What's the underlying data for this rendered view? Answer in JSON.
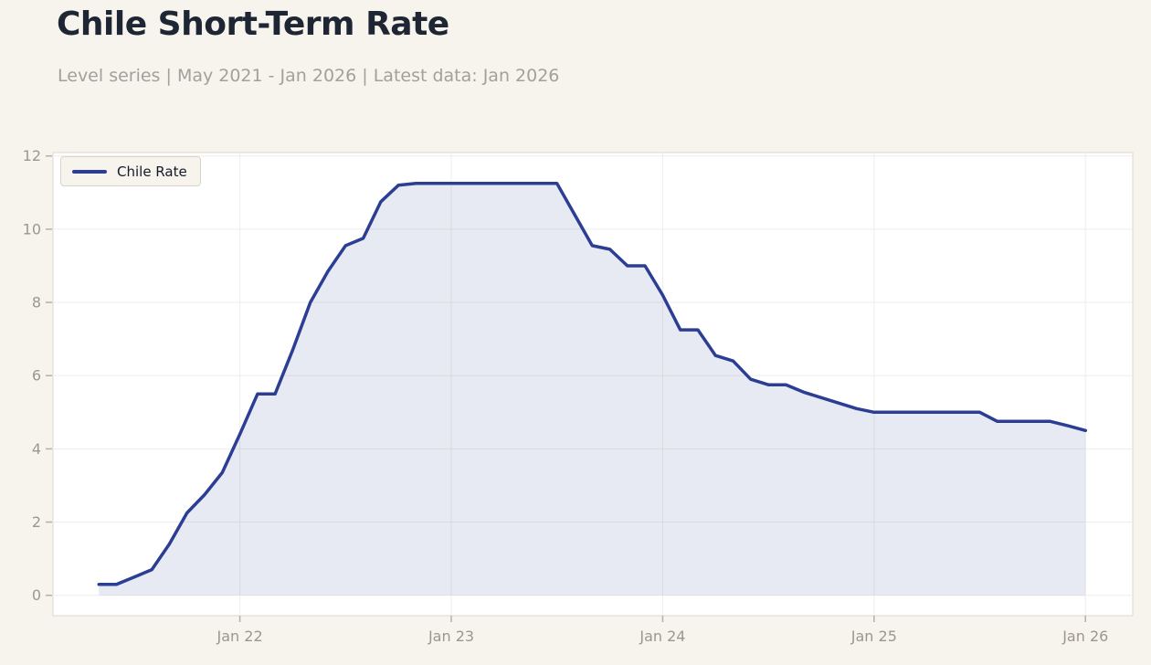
{
  "header": {
    "title": "Chile Short-Term Rate",
    "subtitle": "Level series | May 2021 - Jan 2026 | Latest data: Jan 2026"
  },
  "colors": {
    "page_background": "#f7f4ee",
    "plot_background": "#ffffff",
    "plot_border": "#dbd8ce",
    "gridline": "#ededec",
    "tick": "#b3afa6",
    "axis_label": "#9b978f",
    "line": "#2b3e94",
    "area_fill": "rgba(43,62,148,0.11)",
    "title_text": "#1e2634",
    "subtitle_text": "#a3a09a",
    "legend_text": "#141a2a"
  },
  "chart_data": {
    "type": "area",
    "title": "Chile Short-Term Rate",
    "subtitle": "Level series | May 2021 - Jan 2026 | Latest data: Jan 2026",
    "xlabel": "",
    "ylabel": "",
    "grid": true,
    "legend_position": "upper-left",
    "ylim": [
      -0.55,
      12.1
    ],
    "yticks": [
      0,
      2,
      4,
      6,
      8,
      10,
      12
    ],
    "xticks": [
      {
        "label": "Jan 22",
        "month_index": 8
      },
      {
        "label": "Jan 23",
        "month_index": 20
      },
      {
        "label": "Jan 24",
        "month_index": 32
      },
      {
        "label": "Jan 25",
        "month_index": 44
      },
      {
        "label": "Jan 26",
        "month_index": 56
      }
    ],
    "series": [
      {
        "name": "Chile Rate",
        "points": [
          [
            "2021-05",
            0.3
          ],
          [
            "2021-06",
            0.3
          ],
          [
            "2021-07",
            0.5
          ],
          [
            "2021-08",
            0.7
          ],
          [
            "2021-09",
            1.4
          ],
          [
            "2021-10",
            2.25
          ],
          [
            "2021-11",
            2.75
          ],
          [
            "2021-12",
            3.35
          ],
          [
            "2022-01",
            4.4
          ],
          [
            "2022-02",
            5.5
          ],
          [
            "2022-03",
            5.5
          ],
          [
            "2022-04",
            6.7
          ],
          [
            "2022-05",
            8.0
          ],
          [
            "2022-06",
            8.85
          ],
          [
            "2022-07",
            9.55
          ],
          [
            "2022-08",
            9.75
          ],
          [
            "2022-09",
            10.75
          ],
          [
            "2022-10",
            11.2
          ],
          [
            "2022-11",
            11.25
          ],
          [
            "2022-12",
            11.25
          ],
          [
            "2023-01",
            11.25
          ],
          [
            "2023-02",
            11.25
          ],
          [
            "2023-03",
            11.25
          ],
          [
            "2023-04",
            11.25
          ],
          [
            "2023-05",
            11.25
          ],
          [
            "2023-06",
            11.25
          ],
          [
            "2023-07",
            11.25
          ],
          [
            "2023-08",
            10.4
          ],
          [
            "2023-09",
            9.55
          ],
          [
            "2023-10",
            9.45
          ],
          [
            "2023-11",
            9.0
          ],
          [
            "2023-12",
            9.0
          ],
          [
            "2024-01",
            8.2
          ],
          [
            "2024-02",
            7.25
          ],
          [
            "2024-03",
            7.25
          ],
          [
            "2024-04",
            6.55
          ],
          [
            "2024-05",
            6.4
          ],
          [
            "2024-06",
            5.9
          ],
          [
            "2024-07",
            5.75
          ],
          [
            "2024-08",
            5.75
          ],
          [
            "2024-09",
            5.55
          ],
          [
            "2024-10",
            5.4
          ],
          [
            "2024-11",
            5.25
          ],
          [
            "2024-12",
            5.1
          ],
          [
            "2025-01",
            5.0
          ],
          [
            "2025-02",
            5.0
          ],
          [
            "2025-03",
            5.0
          ],
          [
            "2025-04",
            5.0
          ],
          [
            "2025-05",
            5.0
          ],
          [
            "2025-06",
            5.0
          ],
          [
            "2025-07",
            5.0
          ],
          [
            "2025-08",
            4.75
          ],
          [
            "2025-09",
            4.75
          ],
          [
            "2025-10",
            4.75
          ],
          [
            "2025-11",
            4.75
          ],
          [
            "2025-12",
            4.63
          ],
          [
            "2026-01",
            4.5
          ]
        ]
      }
    ]
  }
}
